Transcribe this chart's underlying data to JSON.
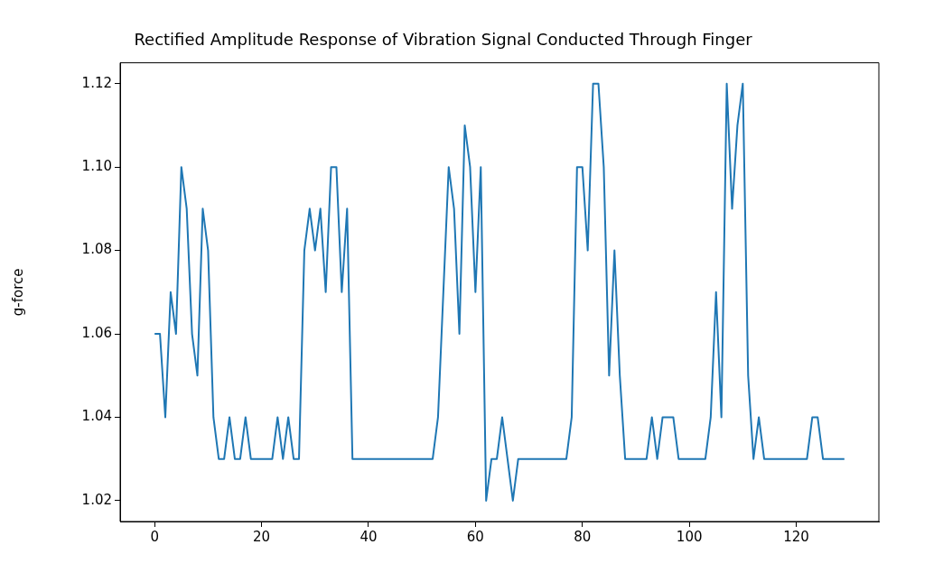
{
  "chart_data": {
    "type": "line",
    "title": "Rectified Amplitude Response of Vibration Signal Conducted Through Finger",
    "ylabel": "g-force",
    "x": [
      0,
      1,
      2,
      3,
      4,
      5,
      6,
      7,
      8,
      9,
      10,
      11,
      12,
      13,
      14,
      15,
      16,
      17,
      18,
      19,
      20,
      21,
      22,
      23,
      24,
      25,
      26,
      27,
      28,
      29,
      30,
      31,
      32,
      33,
      34,
      35,
      36,
      37,
      38,
      39,
      40,
      41,
      42,
      43,
      44,
      45,
      46,
      47,
      48,
      49,
      50,
      51,
      52,
      53,
      54,
      55,
      56,
      57,
      58,
      59,
      60,
      61,
      62,
      63,
      64,
      65,
      66,
      67,
      68,
      69,
      70,
      71,
      72,
      73,
      74,
      75,
      76,
      77,
      78,
      79,
      80,
      81,
      82,
      83,
      84,
      85,
      86,
      87,
      88,
      89,
      90,
      91,
      92,
      93,
      94,
      95,
      96,
      97,
      98,
      99,
      100,
      101,
      102,
      103,
      104,
      105,
      106,
      107,
      108,
      109,
      110,
      111,
      112,
      113,
      114,
      115,
      116,
      117,
      118,
      119,
      120,
      121,
      122,
      123,
      124,
      125,
      126,
      127,
      128,
      129
    ],
    "series": [
      {
        "color": "#1f77b4",
        "values": [
          1.06,
          1.06,
          1.04,
          1.07,
          1.06,
          1.1,
          1.09,
          1.06,
          1.05,
          1.09,
          1.08,
          1.04,
          1.03,
          1.03,
          1.04,
          1.03,
          1.03,
          1.04,
          1.03,
          1.03,
          1.03,
          1.03,
          1.03,
          1.04,
          1.03,
          1.04,
          1.03,
          1.03,
          1.08,
          1.09,
          1.08,
          1.09,
          1.07,
          1.1,
          1.1,
          1.07,
          1.09,
          1.03,
          1.03,
          1.03,
          1.03,
          1.03,
          1.03,
          1.03,
          1.03,
          1.03,
          1.03,
          1.03,
          1.03,
          1.03,
          1.03,
          1.03,
          1.03,
          1.04,
          1.07,
          1.1,
          1.09,
          1.06,
          1.11,
          1.1,
          1.07,
          1.1,
          1.02,
          1.03,
          1.03,
          1.04,
          1.03,
          1.02,
          1.03,
          1.03,
          1.03,
          1.03,
          1.03,
          1.03,
          1.03,
          1.03,
          1.03,
          1.03,
          1.04,
          1.1,
          1.1,
          1.08,
          1.12,
          1.12,
          1.1,
          1.05,
          1.08,
          1.05,
          1.03,
          1.03,
          1.03,
          1.03,
          1.03,
          1.04,
          1.03,
          1.04,
          1.04,
          1.04,
          1.03,
          1.03,
          1.03,
          1.03,
          1.03,
          1.03,
          1.04,
          1.07,
          1.04,
          1.12,
          1.09,
          1.11,
          1.12,
          1.05,
          1.03,
          1.04,
          1.03,
          1.03,
          1.03,
          1.03,
          1.03,
          1.03,
          1.03,
          1.03,
          1.03,
          1.04,
          1.04,
          1.03,
          1.03,
          1.03,
          1.03,
          1.03
        ]
      }
    ],
    "xlim": [
      -6.45,
      135.45
    ],
    "xticks": [
      0,
      20,
      40,
      60,
      80,
      100,
      120
    ],
    "ylim": [
      1.015,
      1.125
    ],
    "yticks": [
      {
        "value": 1.02,
        "label": "1.02"
      },
      {
        "value": 1.04,
        "label": "1.04"
      },
      {
        "value": 1.06,
        "label": "1.06"
      },
      {
        "value": 1.08,
        "label": "1.08"
      },
      {
        "value": 1.1,
        "label": "1.10"
      },
      {
        "value": 1.12,
        "label": "1.12"
      }
    ],
    "grid": false,
    "legend": false,
    "marker": "none",
    "line_style": "solid"
  }
}
